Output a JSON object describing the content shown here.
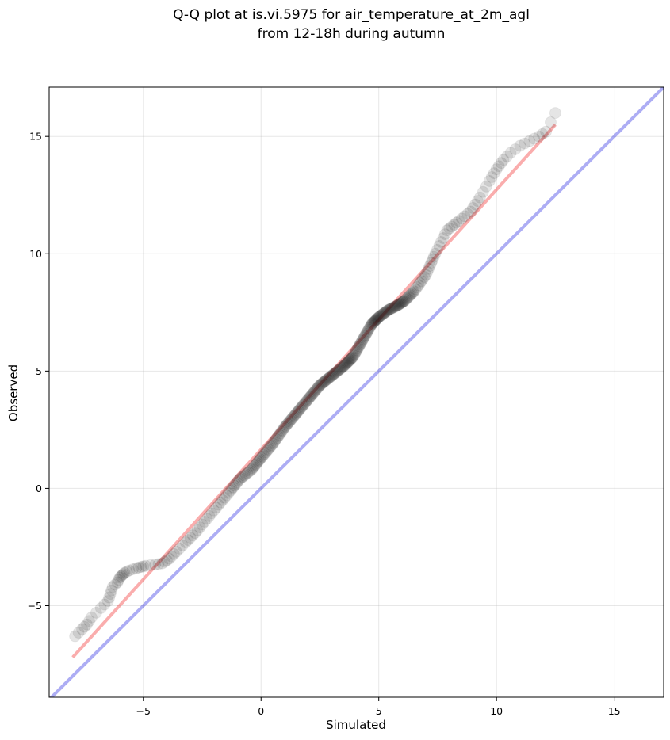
{
  "chart_data": {
    "type": "scatter",
    "title": [
      "Q-Q plot at is.vi.5975 for air_temperature_at_2m_agl",
      "from 12-18h during autumn"
    ],
    "xlabel": "Simulated",
    "ylabel": "Observed",
    "xlim": [
      -9.0,
      17.1
    ],
    "ylim": [
      -8.9,
      17.1
    ],
    "xticks": [
      -5,
      0,
      5,
      10,
      15
    ],
    "yticks": [
      -5,
      0,
      5,
      10,
      15
    ],
    "tick_labels": {
      "x": [
        "−5",
        "0",
        "5",
        "10",
        "15"
      ],
      "y": [
        "−5",
        "0",
        "5",
        "10",
        "15"
      ]
    },
    "grid": true,
    "point_color": "#000000",
    "point_opacity": 0.1,
    "reference_line": {
      "x": [
        -9.0,
        17.1
      ],
      "y": [
        -9.0,
        17.1
      ],
      "color": "#0000dd",
      "opacity": 0.32
    },
    "fit_line": {
      "x": [
        -8.0,
        12.5
      ],
      "y": [
        -7.2,
        15.5
      ],
      "color": "#ee0000",
      "opacity": 0.32
    },
    "quantiles": {
      "simulated": [
        -7.9,
        -7.6,
        -7.4,
        -7.2,
        -6.8,
        -6.5,
        -6.4,
        -6.3,
        -6.1,
        -6.0,
        -5.9,
        -5.8,
        -5.6,
        -5.3,
        -5.1,
        -4.9,
        -4.5,
        -4.2,
        -3.9,
        -3.6,
        -3.2,
        -2.8,
        -2.3,
        -1.8,
        -1.3,
        -0.9,
        -0.4,
        0.0,
        0.5,
        1.0,
        1.5,
        2.0,
        2.5,
        3.0,
        3.5,
        3.9,
        4.3,
        4.7,
        5.0,
        5.4,
        5.8,
        6.1,
        6.5,
        7.0,
        7.4,
        7.9,
        8.4,
        8.9,
        9.3,
        9.7,
        10.0,
        10.3,
        10.6,
        11.0,
        11.4,
        11.8,
        12.1,
        12.5
      ],
      "observed": [
        -6.3,
        -6.0,
        -5.8,
        -5.5,
        -5.1,
        -4.8,
        -4.5,
        -4.2,
        -4.0,
        -3.8,
        -3.7,
        -3.6,
        -3.5,
        -3.4,
        -3.35,
        -3.3,
        -3.25,
        -3.2,
        -3.0,
        -2.7,
        -2.3,
        -1.9,
        -1.3,
        -0.7,
        -0.1,
        0.4,
        0.8,
        1.3,
        1.9,
        2.6,
        3.2,
        3.8,
        4.4,
        4.8,
        5.2,
        5.6,
        6.3,
        7.0,
        7.3,
        7.6,
        7.8,
        8.0,
        8.4,
        9.1,
        10.0,
        11.0,
        11.4,
        11.8,
        12.4,
        13.1,
        13.6,
        14.0,
        14.3,
        14.6,
        14.8,
        15.0,
        15.2,
        16.0
      ]
    }
  }
}
